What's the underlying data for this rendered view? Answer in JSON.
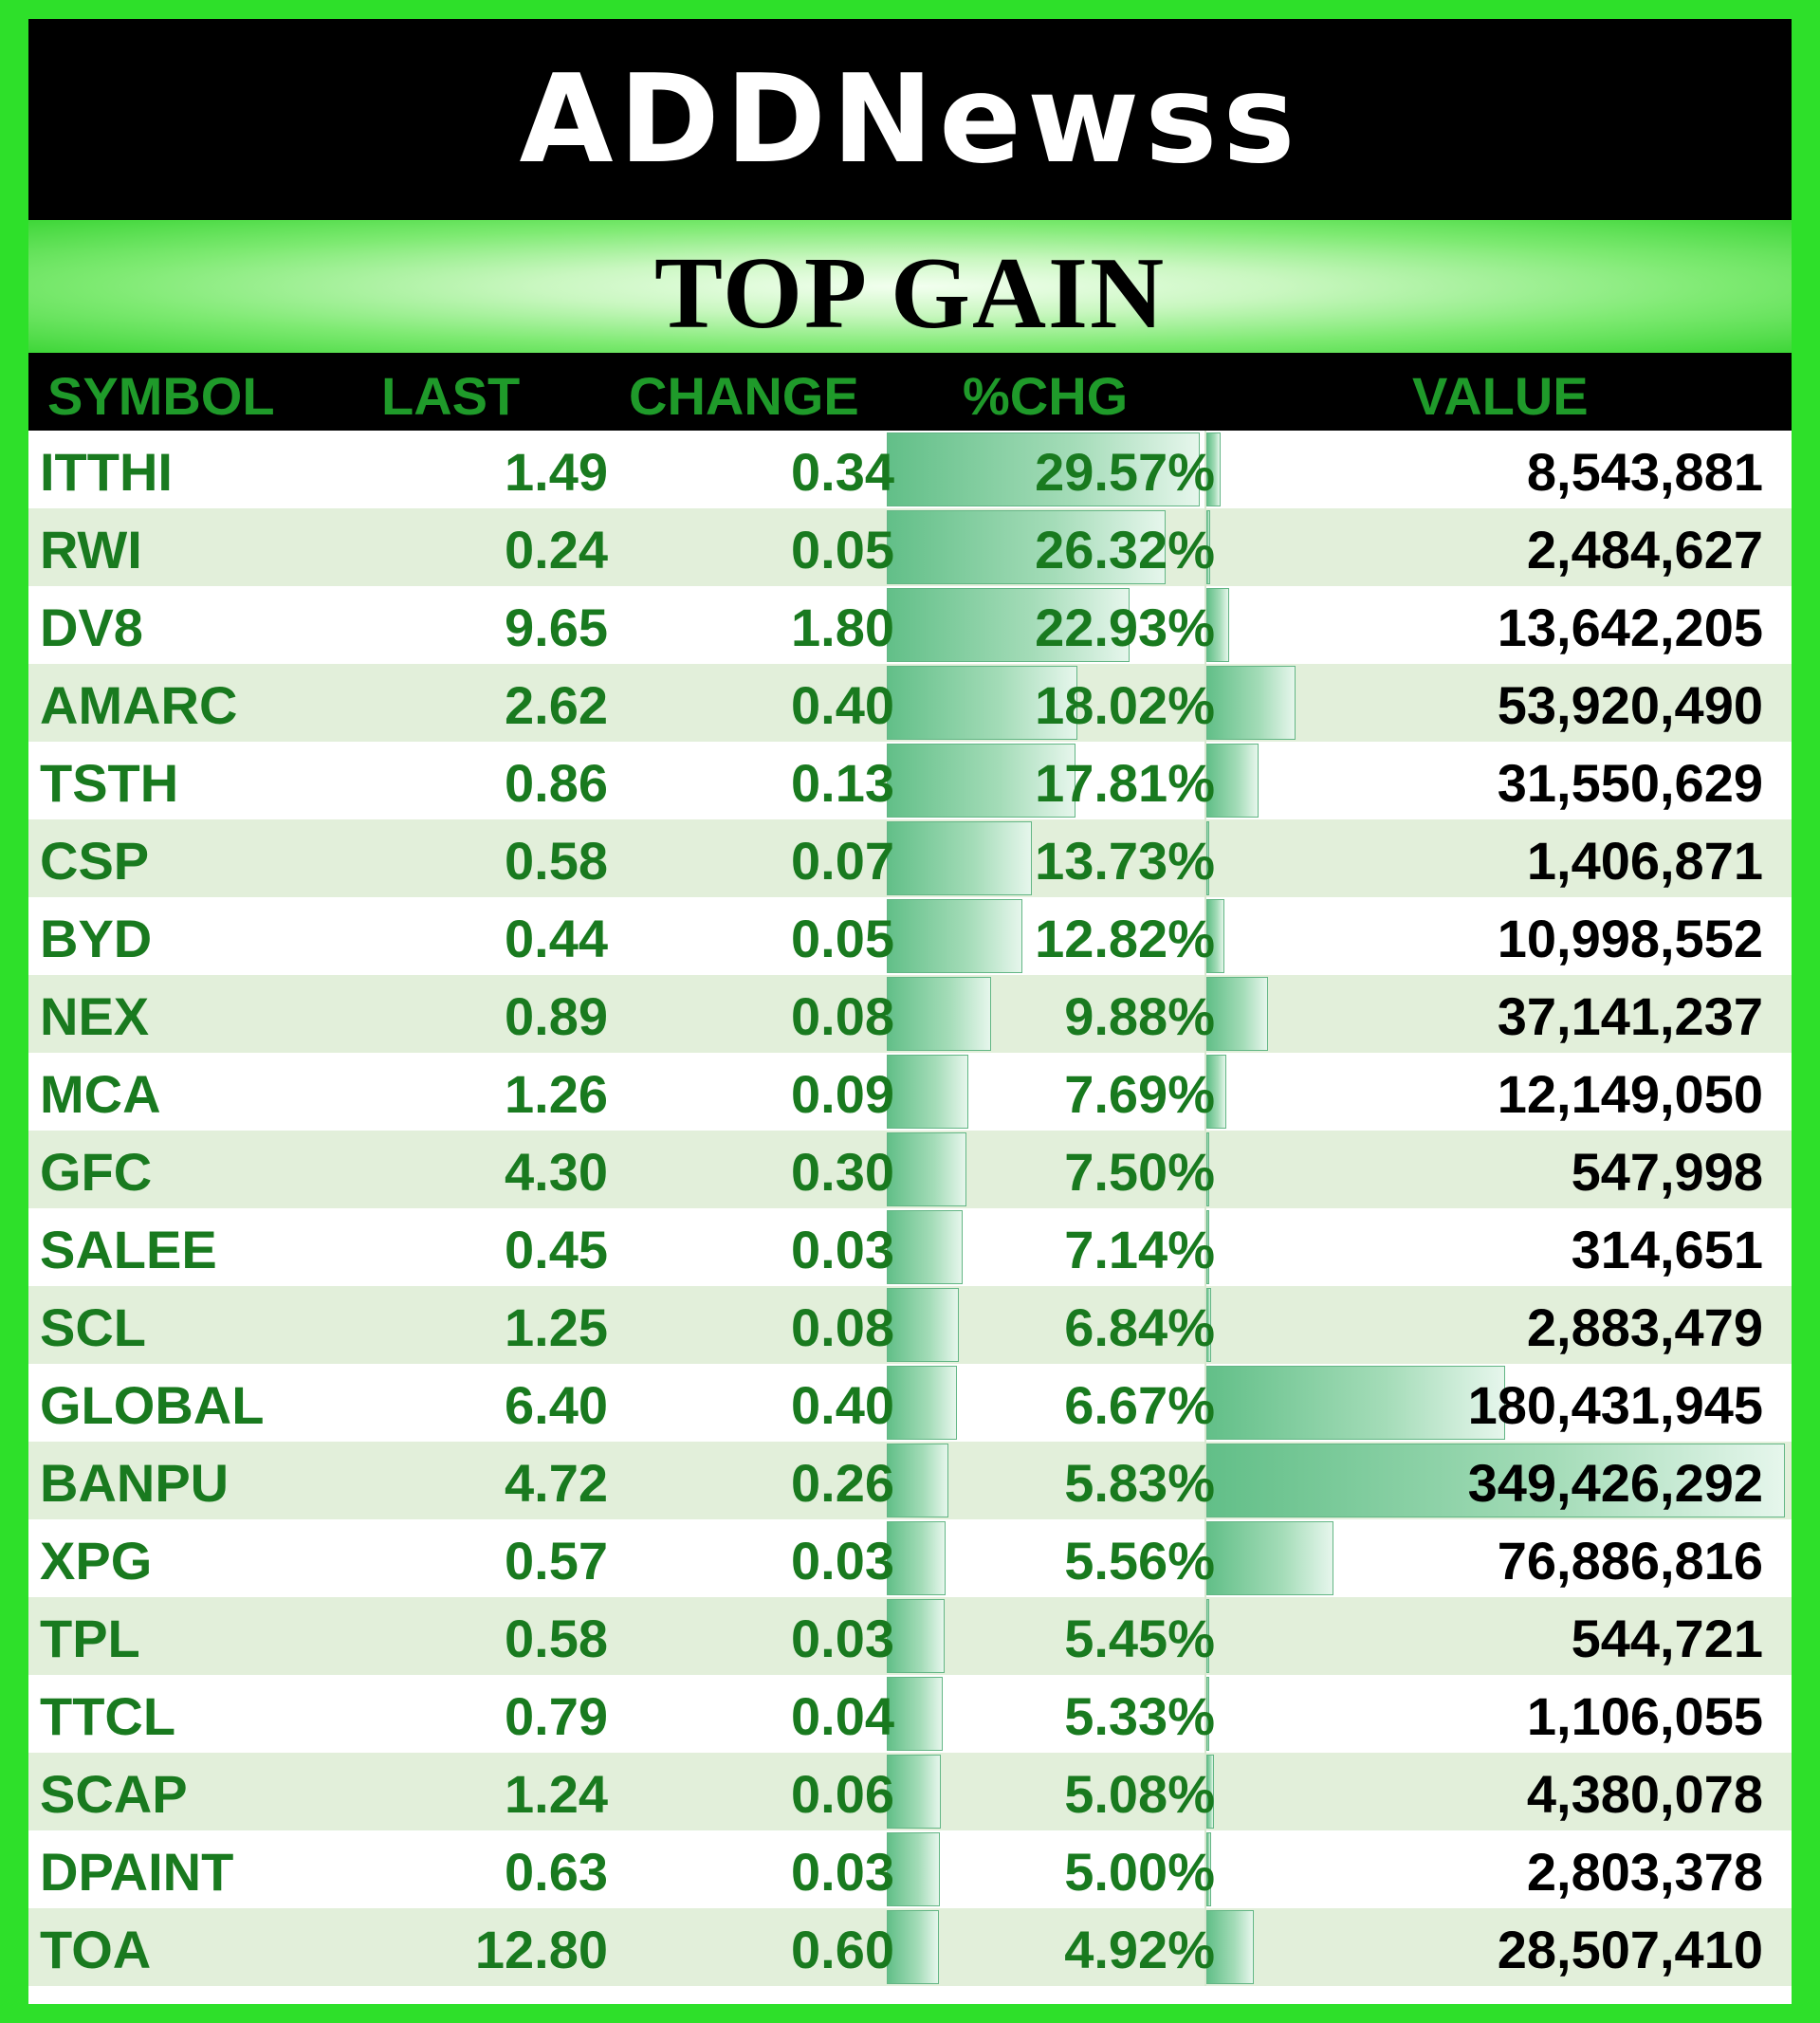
{
  "logo": {
    "text": "ADDNewss",
    "accent_colors": [
      "#1fbf2a",
      "#c41d1d"
    ]
  },
  "title": "TOP GAIN",
  "table": {
    "columns": [
      "SYMBOL",
      "LAST",
      "CHANGE",
      "%CHG",
      "VALUE"
    ],
    "rows": [
      {
        "symbol": "ITTHI",
        "last": "1.49",
        "change": "0.34",
        "pct": "29.57%",
        "value": "8,543,881"
      },
      {
        "symbol": "RWI",
        "last": "0.24",
        "change": "0.05",
        "pct": "26.32%",
        "value": "2,484,627"
      },
      {
        "symbol": "DV8",
        "last": "9.65",
        "change": "1.80",
        "pct": "22.93%",
        "value": "13,642,205"
      },
      {
        "symbol": "AMARC",
        "last": "2.62",
        "change": "0.40",
        "pct": "18.02%",
        "value": "53,920,490"
      },
      {
        "symbol": "TSTH",
        "last": "0.86",
        "change": "0.13",
        "pct": "17.81%",
        "value": "31,550,629"
      },
      {
        "symbol": "CSP",
        "last": "0.58",
        "change": "0.07",
        "pct": "13.73%",
        "value": "1,406,871"
      },
      {
        "symbol": "BYD",
        "last": "0.44",
        "change": "0.05",
        "pct": "12.82%",
        "value": "10,998,552"
      },
      {
        "symbol": "NEX",
        "last": "0.89",
        "change": "0.08",
        "pct": "9.88%",
        "value": "37,141,237"
      },
      {
        "symbol": "MCA",
        "last": "1.26",
        "change": "0.09",
        "pct": "7.69%",
        "value": "12,149,050"
      },
      {
        "symbol": "GFC",
        "last": "4.30",
        "change": "0.30",
        "pct": "7.50%",
        "value": "547,998"
      },
      {
        "symbol": "SALEE",
        "last": "0.45",
        "change": "0.03",
        "pct": "7.14%",
        "value": "314,651"
      },
      {
        "symbol": "SCL",
        "last": "1.25",
        "change": "0.08",
        "pct": "6.84%",
        "value": "2,883,479"
      },
      {
        "symbol": "GLOBAL",
        "last": "6.40",
        "change": "0.40",
        "pct": "6.67%",
        "value": "180,431,945"
      },
      {
        "symbol": "BANPU",
        "last": "4.72",
        "change": "0.26",
        "pct": "5.83%",
        "value": "349,426,292"
      },
      {
        "symbol": "XPG",
        "last": "0.57",
        "change": "0.03",
        "pct": "5.56%",
        "value": "76,886,816"
      },
      {
        "symbol": "TPL",
        "last": "0.58",
        "change": "0.03",
        "pct": "5.45%",
        "value": "544,721"
      },
      {
        "symbol": "TTCL",
        "last": "0.79",
        "change": "0.04",
        "pct": "5.33%",
        "value": "1,106,055"
      },
      {
        "symbol": "SCAP",
        "last": "1.24",
        "change": "0.06",
        "pct": "5.08%",
        "value": "4,380,078"
      },
      {
        "symbol": "DPAINT",
        "last": "0.63",
        "change": "0.03",
        "pct": "5.00%",
        "value": "2,803,378"
      },
      {
        "symbol": "TOA",
        "last": "12.80",
        "change": "0.60",
        "pct": "4.92%",
        "value": "28,507,410"
      }
    ]
  },
  "colors": {
    "frame_green": "#2ee02a",
    "text_green": "#197a1f",
    "header_green": "#1f9a2a",
    "alt_row": "#e2efda"
  }
}
